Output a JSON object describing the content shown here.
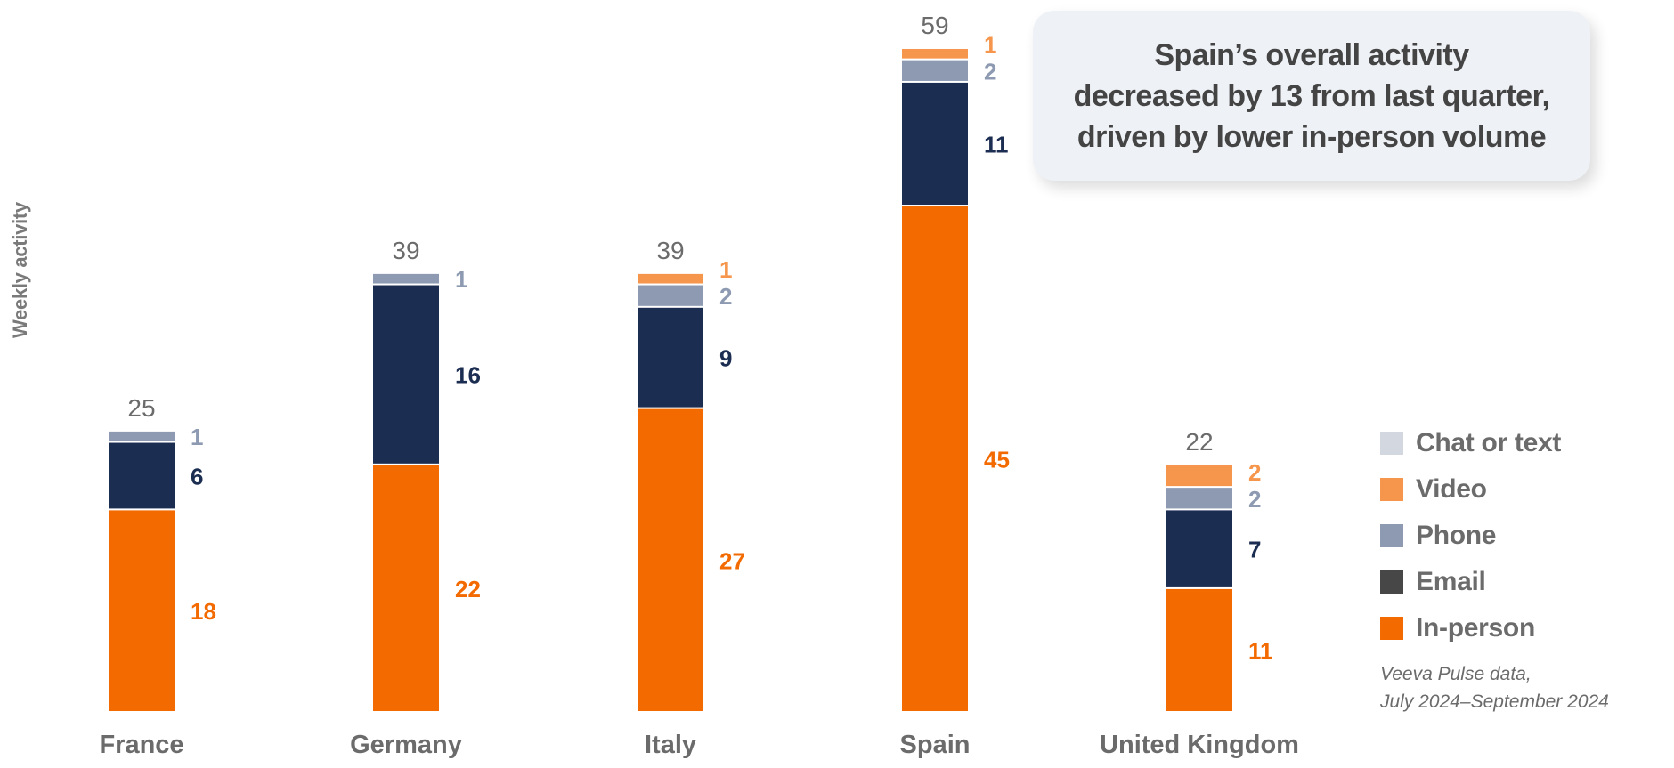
{
  "chart_data": {
    "type": "bar",
    "stacked": true,
    "title": "",
    "xlabel": "",
    "ylabel": "Weekly activity",
    "ylim": [
      0,
      59
    ],
    "grid": false,
    "categories": [
      "France",
      "Germany",
      "Italy",
      "Spain",
      "United Kingdom"
    ],
    "totals": [
      25,
      39,
      39,
      59,
      22
    ],
    "series": [
      {
        "name": "In-person",
        "color": "#f26a00",
        "label_color": "#f26a00",
        "values": [
          18,
          22,
          27,
          45,
          11
        ]
      },
      {
        "name": "Email",
        "color": "#1c2d52",
        "label_color": "#1c2d52",
        "values": [
          6,
          16,
          9,
          11,
          7
        ]
      },
      {
        "name": "Phone",
        "color": "#8d9ab2",
        "label_color": "#8d9ab2",
        "values": [
          1,
          1,
          2,
          2,
          2
        ]
      },
      {
        "name": "Video",
        "color": "#f6964c",
        "label_color": "#f6964c",
        "values": [
          0,
          0,
          1,
          1,
          2
        ]
      },
      {
        "name": "Chat or text",
        "color": "#d2d7e0",
        "label_color": "#d2d7e0",
        "values": [
          0,
          0,
          0,
          0,
          0
        ]
      }
    ],
    "legend": {
      "placement": "right",
      "items": [
        {
          "label": "Chat or text",
          "color": "#d2d7e0"
        },
        {
          "label": "Video",
          "color": "#f6964c"
        },
        {
          "label": "Phone",
          "color": "#8d9ab2"
        },
        {
          "label": "Email",
          "color": "#474747"
        },
        {
          "label": "In-person",
          "color": "#f26a00"
        }
      ]
    },
    "annotation": {
      "lines": [
        "Spain’s overall activity",
        "decreased by 13 from last quarter,",
        "driven by lower in-person volume"
      ]
    },
    "source": [
      "Veeva Pulse data,",
      "July 2024–September 2024"
    ]
  },
  "colors": {
    "total_label": "#6b6b6b",
    "category_label": "#6b6b6b"
  }
}
